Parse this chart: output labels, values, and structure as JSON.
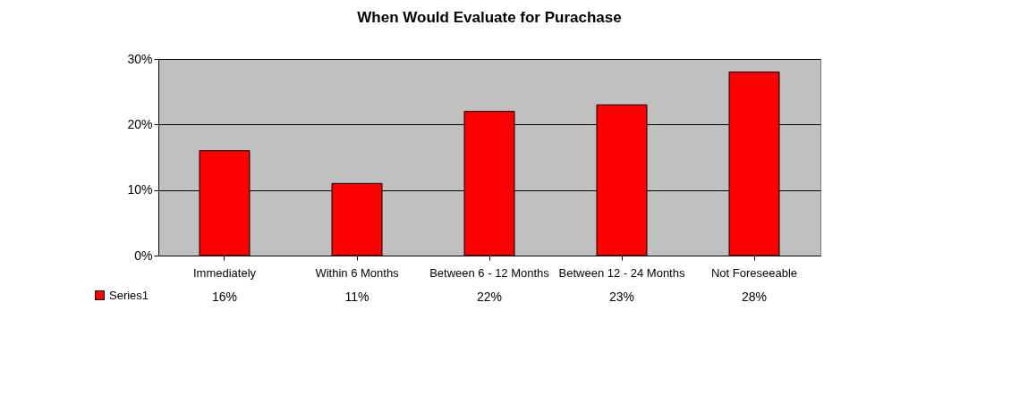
{
  "chart_data": {
    "type": "bar",
    "title": "When Would Evaluate for Purachase",
    "categories": [
      "Immediately",
      "Within 6 Months",
      "Between 6 - 12 Months",
      "Between 12 - 24 Months",
      "Not Foreseeable"
    ],
    "series": [
      {
        "name": "Series1",
        "color": "#ff0000",
        "values": [
          16,
          11,
          22,
          23,
          28
        ],
        "value_labels": [
          "16%",
          "11%",
          "22%",
          "23%",
          "28%"
        ]
      }
    ],
    "ylim": [
      0,
      30
    ],
    "yticks": [
      {
        "value": 0,
        "label": "0%"
      },
      {
        "value": 10,
        "label": "10%"
      },
      {
        "value": 20,
        "label": "20%"
      },
      {
        "value": 30,
        "label": "30%"
      }
    ],
    "grid": "y",
    "legend": "bottom left"
  }
}
